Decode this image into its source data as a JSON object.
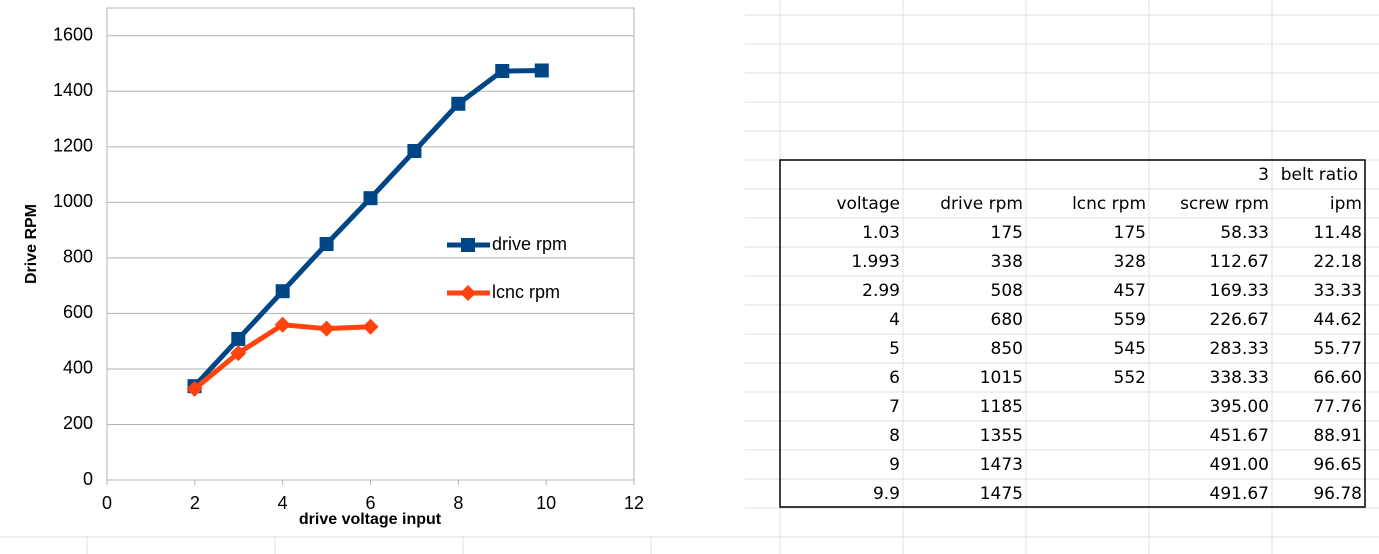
{
  "chart_data": {
    "type": "line",
    "x_label": "drive voltage input",
    "y_label": "Drive RPM",
    "x": [
      1.993,
      2.99,
      4,
      5,
      6,
      7,
      8,
      9,
      9.9
    ],
    "series": [
      {
        "name": "drive rpm",
        "color": "#004586",
        "marker": "square",
        "values": [
          338,
          508,
          680,
          850,
          1015,
          1185,
          1355,
          1473,
          1475
        ]
      },
      {
        "name": "lcnc rpm",
        "color": "#ff420e",
        "marker": "diamond",
        "values": [
          328,
          457,
          559,
          545,
          552,
          null,
          null,
          null,
          null
        ]
      }
    ],
    "xlim": [
      0,
      12
    ],
    "xticks": [
      0,
      2,
      4,
      6,
      8,
      10,
      12
    ],
    "ylim": [
      0,
      1700
    ],
    "yticks": [
      0,
      200,
      400,
      600,
      800,
      1000,
      1200,
      1400,
      1600
    ],
    "grid": true,
    "legend": "right"
  },
  "table": {
    "ratio": "3",
    "ratio_label": "belt ratio",
    "columns": [
      "voltage",
      "drive rpm",
      "lcnc rpm",
      "screw rpm",
      "ipm"
    ],
    "rows": [
      [
        "1.03",
        "175",
        "175",
        "58.33",
        "11.48"
      ],
      [
        "1.993",
        "338",
        "328",
        "112.67",
        "22.18"
      ],
      [
        "2.99",
        "508",
        "457",
        "169.33",
        "33.33"
      ],
      [
        "4",
        "680",
        "559",
        "226.67",
        "44.62"
      ],
      [
        "5",
        "850",
        "545",
        "283.33",
        "55.77"
      ],
      [
        "6",
        "1015",
        "552",
        "338.33",
        "66.60"
      ],
      [
        "7",
        "1185",
        null,
        "395.00",
        "77.76"
      ],
      [
        "8",
        "1355",
        null,
        "451.67",
        "88.91"
      ],
      [
        "9",
        "1473",
        null,
        "491.00",
        "96.65"
      ],
      [
        "9.9",
        "1475",
        null,
        "491.67",
        "96.78"
      ]
    ]
  }
}
